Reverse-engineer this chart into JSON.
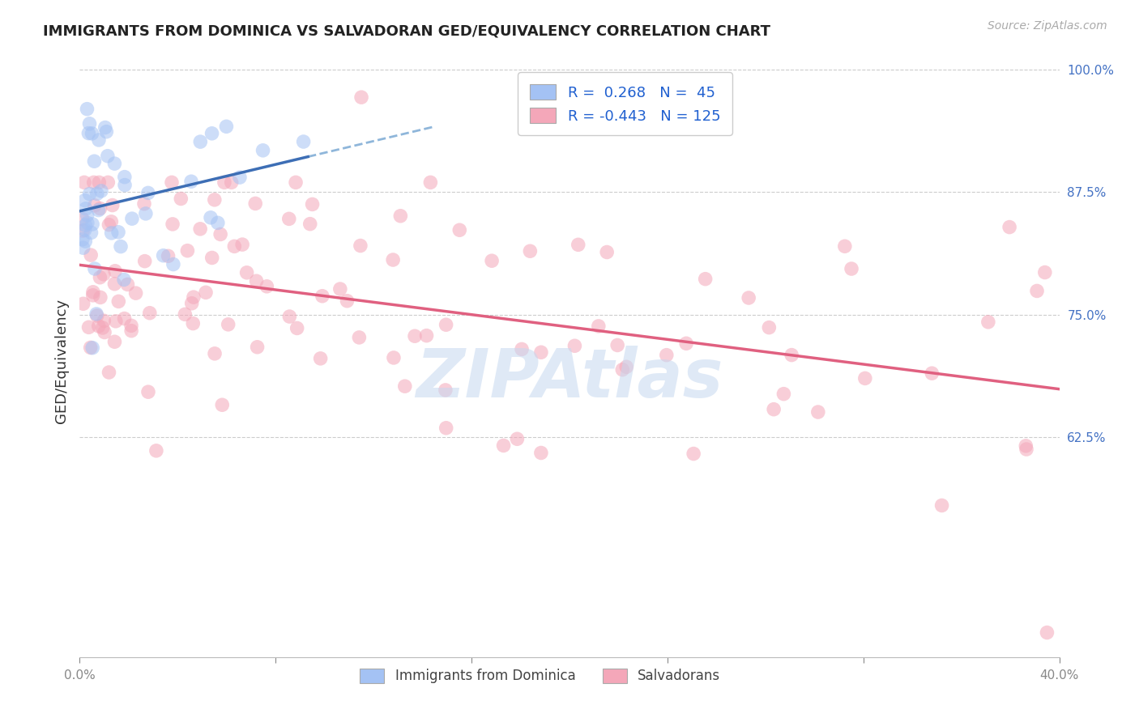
{
  "title": "IMMIGRANTS FROM DOMINICA VS SALVADORAN GED/EQUIVALENCY CORRELATION CHART",
  "source": "Source: ZipAtlas.com",
  "ylabel": "GED/Equivalency",
  "xmin": 0.0,
  "xmax": 0.4,
  "ymin": 0.4,
  "ymax": 1.005,
  "x_tick_positions": [
    0.0,
    0.08,
    0.16,
    0.24,
    0.32,
    0.4
  ],
  "x_tick_labels": [
    "0.0%",
    "",
    "",
    "",
    "",
    "40.0%"
  ],
  "y_ticks_right": [
    0.625,
    0.75,
    0.875,
    1.0
  ],
  "y_tick_labels_right": [
    "62.5%",
    "75.0%",
    "87.5%",
    "100.0%"
  ],
  "R_blue": 0.268,
  "N_blue": 45,
  "R_pink": -0.443,
  "N_pink": 125,
  "blue_fill_color": "#a4c2f4",
  "pink_fill_color": "#f4a7b9",
  "blue_line_color": "#3d6eb5",
  "pink_line_color": "#e06080",
  "dashed_line_color": "#7baad4",
  "watermark": "ZIPAtlas",
  "grid_color": "#cccccc",
  "title_fontsize": 13,
  "source_fontsize": 10,
  "tick_fontsize": 11,
  "ylabel_fontsize": 13,
  "legend_fontsize": 13,
  "watermark_fontsize": 60,
  "scatter_size": 160,
  "scatter_alpha": 0.55,
  "blue_seed": 42,
  "pink_seed": 99
}
